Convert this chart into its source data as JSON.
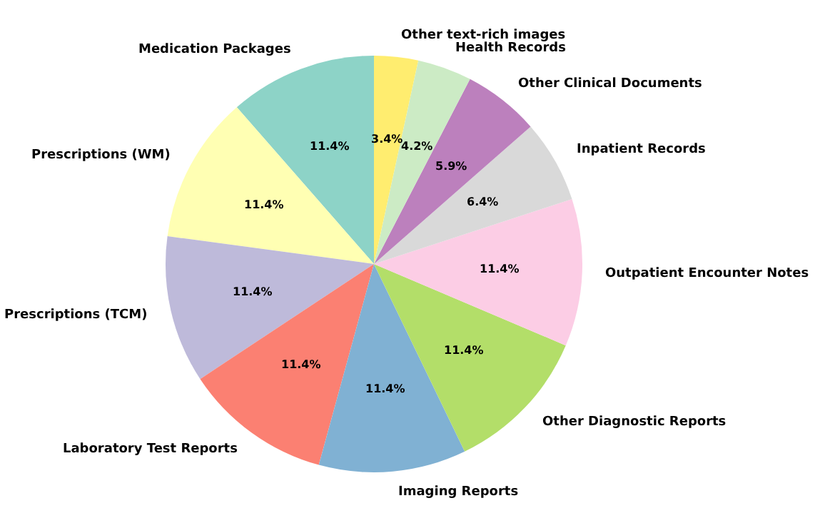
{
  "chart_data": {
    "type": "pie",
    "categories": [
      "Medication Packages",
      "Prescriptions (WM)",
      "Prescriptions (TCM)",
      "Laboratory Test Reports",
      "Imaging Reports",
      "Other Diagnostic Reports",
      "Outpatient Encounter Notes",
      "Inpatient Records",
      "Other Clinical Documents",
      "Health Records",
      "Other text-rich images"
    ],
    "values": [
      11.4,
      11.4,
      11.4,
      11.4,
      11.4,
      11.4,
      11.4,
      6.4,
      5.9,
      4.2,
      3.4
    ],
    "colors": [
      "#8dd3c7",
      "#ffffb3",
      "#bebada",
      "#fb8072",
      "#80b1d3",
      "#b3de69",
      "#fccde5",
      "#d9d9d9",
      "#bc80bd",
      "#ccebc5",
      "#ffed6f"
    ],
    "value_labels": [
      "11.4%",
      "11.4%",
      "11.4%",
      "11.4%",
      "11.4%",
      "11.4%",
      "11.4%",
      "6.4%",
      "5.9%",
      "4.2%",
      "3.4%"
    ],
    "legend": false
  }
}
